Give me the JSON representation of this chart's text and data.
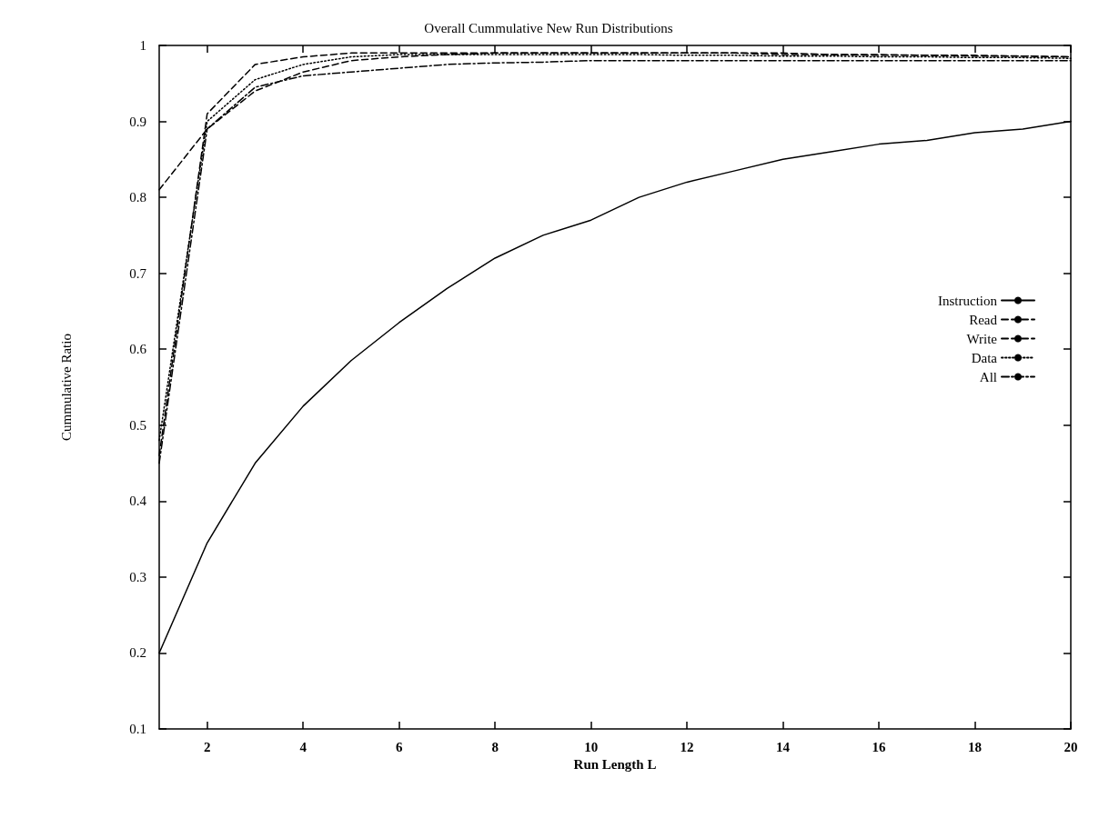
{
  "chart_data": {
    "type": "line",
    "title": "Overall Cummulative New Run Distributions",
    "xlabel": "Run Length L",
    "ylabel": "Cummulative Ratio",
    "xlim": [
      1,
      20
    ],
    "xticks": [
      2,
      4,
      6,
      8,
      10,
      12,
      14,
      16,
      18,
      20
    ],
    "ylim": [
      0.1,
      1
    ],
    "yticks": [
      0.1,
      0.2,
      0.3,
      0.4,
      0.5,
      0.6,
      0.7,
      0.8,
      0.9,
      1
    ],
    "grid": false,
    "legend": "right",
    "marker": "none",
    "x": [
      1,
      2,
      3,
      4,
      5,
      6,
      7,
      8,
      9,
      10,
      11,
      12,
      13,
      14,
      15,
      16,
      17,
      18,
      19,
      20
    ],
    "series": [
      {
        "name": "Instruction",
        "color": "#000000",
        "line_style": "solid",
        "values": [
          0.2,
          0.345,
          0.45,
          0.525,
          0.585,
          0.635,
          0.68,
          0.72,
          0.75,
          0.77,
          0.8,
          0.82,
          0.835,
          0.85,
          0.86,
          0.87,
          0.875,
          0.885,
          0.89,
          0.9
        ]
      },
      {
        "name": "Read",
        "color": "#000000",
        "line_style": "dashed",
        "values": [
          0.81,
          0.89,
          0.94,
          0.965,
          0.98,
          0.985,
          0.988,
          0.99,
          0.99,
          0.99,
          0.99,
          0.99,
          0.99,
          0.988,
          0.988,
          0.987,
          0.987,
          0.986,
          0.986,
          0.985
        ]
      },
      {
        "name": "Write",
        "color": "#000000",
        "line_style": "dashed",
        "values": [
          0.46,
          0.91,
          0.975,
          0.985,
          0.99,
          0.99,
          0.99,
          0.99,
          0.99,
          0.99,
          0.99,
          0.99,
          0.99,
          0.99,
          0.988,
          0.988,
          0.987,
          0.987,
          0.986,
          0.985
        ]
      },
      {
        "name": "Data",
        "color": "#000000",
        "line_style": "dotted",
        "values": [
          0.48,
          0.9,
          0.955,
          0.975,
          0.985,
          0.988,
          0.988,
          0.988,
          0.988,
          0.988,
          0.988,
          0.987,
          0.987,
          0.986,
          0.986,
          0.985,
          0.985,
          0.984,
          0.984,
          0.983
        ]
      },
      {
        "name": "All",
        "color": "#000000",
        "line_style": "dashdot",
        "values": [
          0.45,
          0.89,
          0.945,
          0.96,
          0.965,
          0.97,
          0.975,
          0.977,
          0.978,
          0.98,
          0.98,
          0.98,
          0.98,
          0.98,
          0.98,
          0.98,
          0.98,
          0.98,
          0.98,
          0.98
        ]
      }
    ]
  }
}
